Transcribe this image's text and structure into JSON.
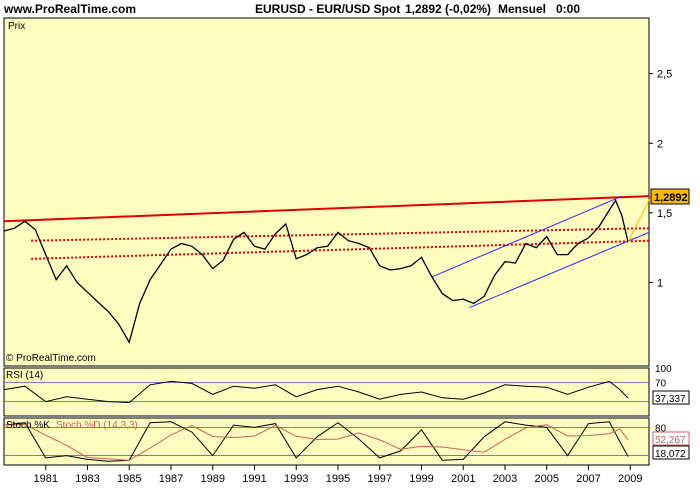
{
  "header": {
    "site": "www.ProRealTime.com",
    "instrument": "EURUSD - EUR/USD Spot",
    "quote": "1,2892 (-0,02%)",
    "period": "Mensuel",
    "time": "0:00"
  },
  "colors": {
    "panel_bg": "#fffcc0",
    "price": "#000000",
    "resistance": "#e00000",
    "channel": "#2a2aff",
    "stoch_d": "#d06060",
    "badge_bg": "#ffb800"
  },
  "chart_data": [
    {
      "type": "line",
      "panel": "price",
      "label": "Prix",
      "source": "© ProRealTime.com",
      "last_value": "1,2892",
      "ylim": [
        0.4,
        2.9
      ],
      "y_ticks": [
        "2,5",
        "2",
        "1,5",
        "1"
      ],
      "x_ticks": [
        "1981",
        "1983",
        "1985",
        "1987",
        "1989",
        "1991",
        "1993",
        "1995",
        "1997",
        "1999",
        "2001",
        "2003",
        "2005",
        "2007",
        "2009"
      ],
      "series": [
        {
          "x": [
            1979.0,
            1979.5,
            1980.0,
            1980.5,
            1981.0,
            1981.5,
            1982.0,
            1982.5,
            1983.0,
            1983.5,
            1984.0,
            1984.5,
            1985.0,
            1985.5,
            1986.0,
            1986.5,
            1987.0,
            1987.5,
            1988.0,
            1988.5,
            1989.0,
            1989.5,
            1990.0,
            1990.5,
            1991.0,
            1991.5,
            1992.0,
            1992.5,
            1993.0,
            1993.5,
            1994.0,
            1994.5,
            1995.0,
            1995.5,
            1996.0,
            1996.5,
            1997.0,
            1997.5,
            1998.0,
            1998.5,
            1999.0,
            1999.5,
            2000.0,
            2000.5,
            2001.0,
            2001.5,
            2002.0,
            2002.5,
            2003.0,
            2003.5,
            2004.0,
            2004.5,
            2005.0,
            2005.5,
            2006.0,
            2006.5,
            2007.0,
            2007.5,
            2008.0,
            2008.3,
            2008.6,
            2008.9
          ],
          "y": [
            1.37,
            1.39,
            1.44,
            1.38,
            1.2,
            1.02,
            1.12,
            1.0,
            0.93,
            0.86,
            0.79,
            0.7,
            0.57,
            0.85,
            1.02,
            1.13,
            1.24,
            1.28,
            1.26,
            1.2,
            1.1,
            1.16,
            1.31,
            1.36,
            1.26,
            1.24,
            1.35,
            1.42,
            1.17,
            1.2,
            1.25,
            1.26,
            1.36,
            1.3,
            1.28,
            1.25,
            1.12,
            1.09,
            1.1,
            1.12,
            1.18,
            1.04,
            0.92,
            0.87,
            0.88,
            0.85,
            0.9,
            1.05,
            1.15,
            1.14,
            1.28,
            1.25,
            1.33,
            1.2,
            1.2,
            1.28,
            1.32,
            1.4,
            1.52,
            1.59,
            1.48,
            1.29
          ]
        }
      ],
      "lines": [
        {
          "name": "resistance",
          "style": "solid",
          "color": "#e00000",
          "points": [
            [
              1979.0,
              1.44
            ],
            [
              2009.9,
              1.62
            ]
          ]
        },
        {
          "name": "upper-dotted",
          "style": "dotted",
          "color": "#e00000",
          "points": [
            [
              1980.3,
              1.3
            ],
            [
              2009.9,
              1.39
            ]
          ]
        },
        {
          "name": "lower-dotted",
          "style": "dotted",
          "color": "#e00000",
          "points": [
            [
              1980.3,
              1.17
            ],
            [
              2009.9,
              1.3
            ]
          ]
        },
        {
          "name": "channel-upper",
          "style": "solid",
          "color": "#2a2aff",
          "points": [
            [
              1999.5,
              1.04
            ],
            [
              2008.6,
              1.62
            ]
          ]
        },
        {
          "name": "channel-lower",
          "style": "solid",
          "color": "#2a2aff",
          "points": [
            [
              2001.3,
              0.82
            ],
            [
              2009.9,
              1.36
            ]
          ]
        }
      ]
    },
    {
      "type": "line",
      "panel": "rsi",
      "label": "RSI (14)",
      "last_value": "37,337",
      "ylim": [
        0,
        100
      ],
      "y_ticks": [
        "100",
        "70"
      ],
      "levels": [
        70,
        30
      ],
      "series": [
        {
          "x": [
            1979,
            1980,
            1981,
            1982,
            1983,
            1984,
            1985,
            1986,
            1987,
            1988,
            1989,
            1990,
            1991,
            1992,
            1993,
            1994,
            1995,
            1996,
            1997,
            1998,
            1999,
            2000,
            2001,
            2002,
            2003,
            2004,
            2005,
            2006,
            2007,
            2008,
            2008.5,
            2008.9
          ],
          "y": [
            55,
            62,
            30,
            40,
            35,
            30,
            28,
            65,
            72,
            68,
            45,
            62,
            58,
            65,
            40,
            55,
            62,
            50,
            35,
            45,
            50,
            38,
            35,
            48,
            65,
            62,
            60,
            45,
            60,
            72,
            55,
            37.337
          ]
        }
      ]
    },
    {
      "type": "line",
      "panel": "stochastic",
      "label": "Stoch %K",
      "label_d": "Stoch %D (14,3,3)",
      "last_values": [
        "52,267",
        "18,072"
      ],
      "ylim": [
        0,
        100
      ],
      "y_ticks": [
        "80"
      ],
      "levels": [
        80,
        20
      ],
      "series": [
        {
          "name": "Stoch %K",
          "x": [
            1979,
            1980,
            1981,
            1982,
            1983,
            1984,
            1985,
            1986,
            1987,
            1988,
            1989,
            1990,
            1991,
            1992,
            1993,
            1994,
            1995,
            1996,
            1997,
            1998,
            1999,
            2000,
            2001,
            2002,
            2003,
            2004,
            2005,
            2006,
            2007,
            2008,
            2008.5,
            2008.9
          ],
          "y": [
            85,
            90,
            15,
            20,
            12,
            8,
            10,
            90,
            92,
            70,
            20,
            85,
            80,
            88,
            15,
            60,
            90,
            55,
            15,
            30,
            75,
            10,
            12,
            60,
            92,
            85,
            80,
            20,
            88,
            92,
            50,
            18
          ]
        }
      ]
    }
  ]
}
